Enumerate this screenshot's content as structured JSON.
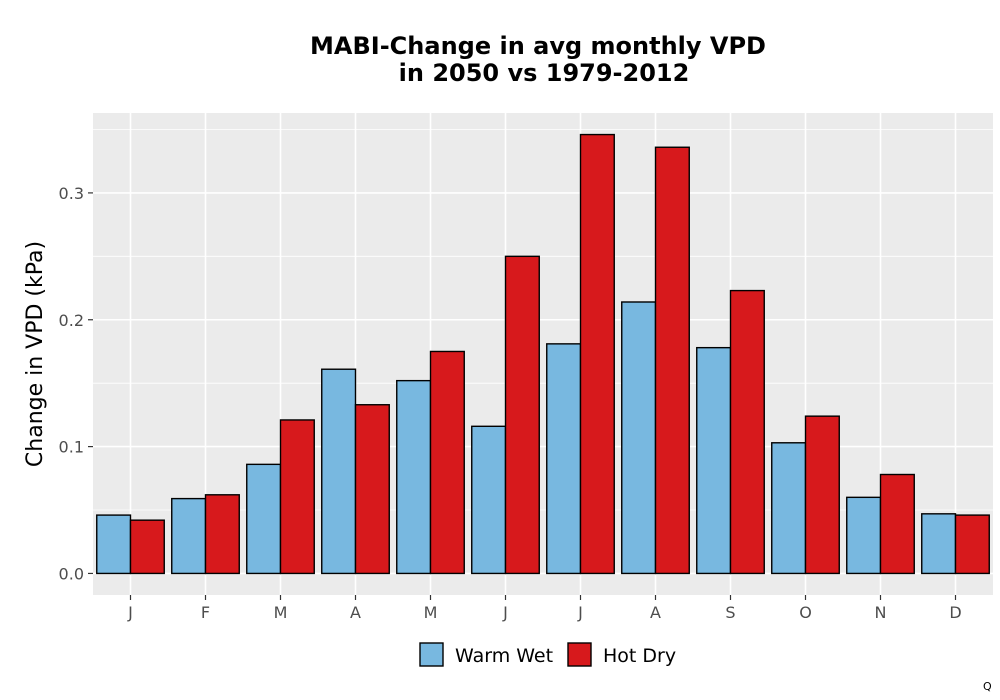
{
  "chart_data": {
    "type": "bar",
    "title": "MABI-Change in avg monthly VPD",
    "subtitle": "in 2050 vs 1979-2012",
    "xlabel": "",
    "ylabel": "Change in VPD (kPa)",
    "categories": [
      "J",
      "F",
      "M",
      "A",
      "M",
      "J",
      "J",
      "A",
      "S",
      "O",
      "N",
      "D"
    ],
    "series": [
      {
        "name": "Warm Wet",
        "color": "#78b8e0",
        "values": [
          0.046,
          0.059,
          0.086,
          0.161,
          0.152,
          0.116,
          0.181,
          0.214,
          0.178,
          0.103,
          0.06,
          0.047
        ]
      },
      {
        "name": "Hot Dry",
        "color": "#d7191c",
        "values": [
          0.042,
          0.062,
          0.121,
          0.133,
          0.175,
          0.25,
          0.346,
          0.336,
          0.223,
          0.124,
          0.078,
          0.046
        ]
      }
    ],
    "ylim": [
      -0.017,
      0.363
    ],
    "yticks": [
      0.0,
      0.1,
      0.2,
      0.3
    ],
    "ytick_labels": [
      "0.0",
      "0.1",
      "0.2",
      "0.3"
    ],
    "grid": true,
    "legend_position": "bottom"
  },
  "corner_mark": "Q",
  "colors": {
    "panel_background": "#ebebeb",
    "grid": "#ffffff",
    "bar_outline": "#000000"
  }
}
